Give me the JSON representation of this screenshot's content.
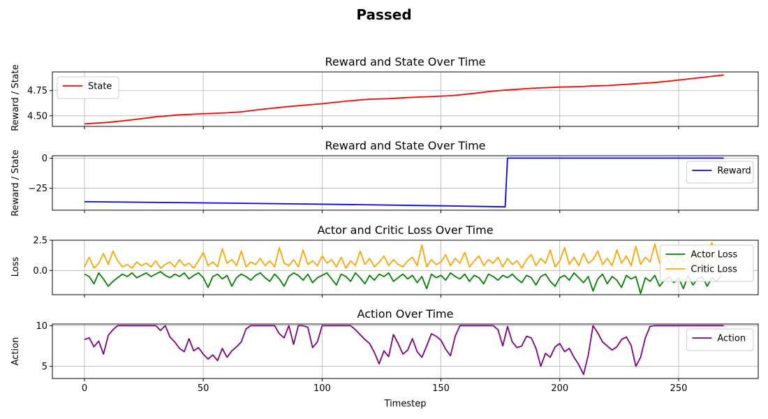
{
  "figure": {
    "suptitle": "Passed"
  },
  "chart_data": [
    {
      "type": "line",
      "title": "Reward and State Over Time",
      "xlabel": "",
      "ylabel": "Reward / State",
      "xlim": [
        -13.5,
        283.5
      ],
      "ylim": [
        4.395,
        4.935
      ],
      "yticks": [
        4.5,
        4.75
      ],
      "ytick_labels": [
        "4.50",
        "4.75"
      ],
      "xticks": [
        0,
        50,
        100,
        150,
        200,
        250
      ],
      "xtick_labels_visible": false,
      "grid": true,
      "legend": "top-left",
      "series": [
        {
          "name": "State",
          "color": "#ff0000",
          "x": [
            0,
            10,
            20,
            30,
            40,
            50,
            60,
            66,
            75,
            85,
            95,
            100,
            110,
            120,
            128,
            135,
            145,
            155,
            165,
            172,
            180,
            190,
            200,
            210,
            213,
            220,
            230,
            240,
            250,
            260,
            269
          ],
          "y": [
            4.42,
            4.435,
            4.46,
            4.49,
            4.51,
            4.52,
            4.53,
            4.54,
            4.565,
            4.59,
            4.61,
            4.62,
            4.645,
            4.665,
            4.67,
            4.68,
            4.69,
            4.7,
            4.725,
            4.745,
            4.76,
            4.775,
            4.785,
            4.79,
            4.795,
            4.8,
            4.815,
            4.83,
            4.855,
            4.88,
            4.905
          ]
        }
      ]
    },
    {
      "type": "line",
      "title": "Reward and State Over Time",
      "xlabel": "",
      "ylabel": "Reward / State",
      "xlim": [
        -13.5,
        283.5
      ],
      "ylim": [
        -43.4,
        2.1
      ],
      "yticks": [
        -25,
        0
      ],
      "ytick_labels": [
        "−25",
        "0"
      ],
      "xticks": [
        0,
        50,
        100,
        150,
        200,
        250
      ],
      "xtick_labels_visible": false,
      "grid": true,
      "legend": "right",
      "series": [
        {
          "name": "Reward",
          "color": "#0000ff",
          "x": [
            0,
            50,
            100,
            150,
            177,
            178,
            220,
            269
          ],
          "y": [
            -36.3,
            -37.3,
            -38.4,
            -39.7,
            -40.6,
            0.1,
            0.1,
            0.1
          ]
        }
      ]
    },
    {
      "type": "line",
      "title": "Actor and Critic Loss Over Time",
      "xlabel": "",
      "ylabel": "Loss",
      "xlim": [
        -13.5,
        283.5
      ],
      "ylim": [
        -2.0,
        2.5
      ],
      "yticks": [
        0.0,
        2.5
      ],
      "ytick_labels": [
        "0.0",
        "2.5"
      ],
      "xticks": [
        0,
        50,
        100,
        150,
        200,
        250
      ],
      "xtick_labels_visible": false,
      "grid": true,
      "legend": "top-right",
      "series": [
        {
          "name": "Actor Loss",
          "color": "#008000",
          "x": [
            0,
            2,
            4,
            6,
            8,
            10,
            12,
            14,
            16,
            18,
            20,
            22,
            24,
            26,
            28,
            30,
            32,
            34,
            36,
            38,
            40,
            42,
            44,
            46,
            48,
            50,
            52,
            54,
            56,
            58,
            60,
            62,
            64,
            66,
            68,
            70,
            72,
            74,
            76,
            78,
            80,
            82,
            84,
            86,
            88,
            90,
            92,
            94,
            96,
            98,
            100,
            102,
            104,
            106,
            108,
            110,
            112,
            114,
            116,
            118,
            120,
            122,
            124,
            126,
            128,
            130,
            132,
            134,
            136,
            138,
            140,
            142,
            144,
            146,
            148,
            150,
            152,
            154,
            156,
            158,
            160,
            162,
            164,
            166,
            168,
            170,
            172,
            174,
            176,
            178,
            180,
            182,
            184,
            186,
            188,
            190,
            192,
            194,
            196,
            198,
            200,
            202,
            204,
            206,
            208,
            210,
            212,
            214,
            216,
            218,
            220,
            222,
            224,
            226,
            228,
            230,
            232,
            234,
            236,
            238,
            240,
            242,
            244,
            246,
            248,
            250,
            252,
            254,
            256,
            258,
            260,
            262,
            264,
            266,
            268
          ],
          "y": [
            -0.3,
            -0.5,
            -1.1,
            -0.2,
            -0.7,
            -1.3,
            -0.9,
            -0.6,
            -0.3,
            -0.5,
            -0.2,
            -0.6,
            -0.4,
            -0.2,
            -0.5,
            -0.3,
            -0.1,
            -0.4,
            -0.6,
            -0.3,
            -0.5,
            -0.2,
            -0.7,
            -0.4,
            -0.2,
            -0.6,
            -1.4,
            -0.5,
            -0.3,
            -0.7,
            -0.4,
            -1.3,
            -0.6,
            -0.3,
            -0.5,
            -0.8,
            -0.4,
            -0.2,
            -0.6,
            -0.9,
            -0.3,
            -0.7,
            -1.3,
            -0.5,
            -0.2,
            -0.4,
            -0.8,
            -0.3,
            -1.0,
            -0.6,
            -0.4,
            -0.2,
            -0.7,
            -1.2,
            -0.3,
            -0.5,
            -0.9,
            -0.2,
            -0.6,
            -1.1,
            -0.4,
            -0.8,
            -0.3,
            -0.5,
            -0.2,
            -0.9,
            -0.6,
            -0.3,
            -0.7,
            -0.4,
            -1.0,
            -0.5,
            -1.5,
            -0.3,
            -0.6,
            -0.4,
            -0.8,
            -0.2,
            -0.5,
            -0.7,
            -0.3,
            -0.9,
            -0.4,
            -0.6,
            -1.1,
            -0.3,
            -0.5,
            -0.8,
            -0.4,
            -0.6,
            -0.3,
            -0.7,
            -1.0,
            -0.4,
            -0.6,
            -1.2,
            -0.5,
            -0.3,
            -0.9,
            -1.3,
            -0.6,
            -0.4,
            -0.8,
            -0.2,
            -0.6,
            -1.0,
            -0.5,
            -1.7,
            -0.7,
            -0.3,
            -1.1,
            -0.5,
            -0.8,
            -1.4,
            -0.4,
            -0.7,
            -0.5,
            -1.9,
            -0.6,
            -0.9,
            -0.4,
            -1.3,
            -0.8,
            -0.5,
            -1.0,
            -0.6,
            -1.5,
            -0.4,
            -1.2,
            -0.7,
            -0.5,
            -1.3,
            -0.6,
            -0.9,
            -0.4
          ]
        },
        {
          "name": "Critic Loss",
          "color": "#ffa500",
          "x": [
            0,
            2,
            4,
            6,
            8,
            10,
            12,
            14,
            16,
            18,
            20,
            22,
            24,
            26,
            28,
            30,
            32,
            34,
            36,
            38,
            40,
            42,
            44,
            46,
            48,
            50,
            52,
            54,
            56,
            58,
            60,
            62,
            64,
            66,
            68,
            70,
            72,
            74,
            76,
            78,
            80,
            82,
            84,
            86,
            88,
            90,
            92,
            94,
            96,
            98,
            100,
            102,
            104,
            106,
            108,
            110,
            112,
            114,
            116,
            118,
            120,
            122,
            124,
            126,
            128,
            130,
            132,
            134,
            136,
            138,
            140,
            142,
            144,
            146,
            148,
            150,
            152,
            154,
            156,
            158,
            160,
            162,
            164,
            166,
            168,
            170,
            172,
            174,
            176,
            178,
            180,
            182,
            184,
            186,
            188,
            190,
            192,
            194,
            196,
            198,
            200,
            202,
            204,
            206,
            208,
            210,
            212,
            214,
            216,
            218,
            220,
            222,
            224,
            226,
            228,
            230,
            232,
            234,
            236,
            238,
            240,
            242,
            244,
            246,
            248,
            250,
            252,
            254,
            256,
            258,
            260,
            262,
            264,
            266,
            268
          ],
          "y": [
            0.3,
            1.1,
            0.2,
            0.6,
            1.4,
            0.5,
            1.6,
            0.8,
            0.3,
            0.5,
            0.2,
            0.7,
            0.4,
            0.6,
            0.3,
            0.8,
            0.2,
            0.5,
            0.7,
            0.3,
            0.9,
            0.4,
            0.6,
            0.2,
            0.8,
            1.5,
            0.4,
            0.7,
            0.3,
            1.8,
            0.6,
            0.9,
            0.4,
            1.6,
            0.3,
            0.7,
            0.5,
            1.0,
            0.4,
            0.8,
            0.3,
            1.9,
            0.6,
            0.4,
            0.9,
            0.3,
            1.7,
            0.5,
            0.8,
            0.4,
            1.2,
            0.6,
            0.9,
            0.3,
            1.1,
            0.2,
            0.8,
            0.4,
            1.6,
            0.5,
            1.0,
            0.3,
            0.7,
            1.2,
            0.4,
            0.9,
            0.5,
            0.3,
            0.8,
            1.1,
            0.4,
            2.1,
            0.3,
            0.9,
            0.5,
            0.7,
            1.3,
            0.4,
            1.0,
            0.6,
            1.5,
            0.3,
            0.8,
            1.2,
            0.4,
            0.9,
            0.6,
            1.1,
            0.3,
            1.0,
            0.5,
            0.8,
            0.2,
            0.9,
            1.3,
            0.4,
            1.0,
            0.6,
            1.7,
            0.3,
            0.8,
            1.9,
            0.5,
            1.1,
            0.4,
            1.4,
            0.6,
            0.9,
            1.6,
            0.5,
            1.0,
            0.4,
            1.7,
            0.6,
            1.2,
            0.4,
            2.0,
            0.5,
            1.1,
            0.7,
            2.2,
            0.6,
            1.3,
            0.9,
            0.4,
            1.5,
            0.7,
            1.1,
            0.5,
            1.8,
            0.6,
            1.3,
            2.3,
            0.8,
            1.0
          ]
        }
      ]
    },
    {
      "type": "line",
      "title": "Action Over Time",
      "xlabel": "Timestep",
      "ylabel": "Action",
      "xlim": [
        -13.5,
        283.5
      ],
      "ylim": [
        3.5,
        10.2
      ],
      "yticks": [
        5,
        10
      ],
      "ytick_labels": [
        "5",
        "10"
      ],
      "xticks": [
        0,
        50,
        100,
        150,
        200,
        250
      ],
      "xtick_labels": [
        "0",
        "50",
        "100",
        "150",
        "200",
        "250"
      ],
      "grid": true,
      "legend": "top-right",
      "series": [
        {
          "name": "Action",
          "color": "#800080",
          "x": [
            0,
            2,
            4,
            6,
            8,
            10,
            12,
            14,
            16,
            18,
            20,
            24,
            28,
            30,
            32,
            34,
            36,
            38,
            40,
            42,
            44,
            46,
            48,
            50,
            52,
            54,
            56,
            58,
            60,
            62,
            64,
            66,
            68,
            70,
            72,
            76,
            80,
            82,
            84,
            86,
            88,
            90,
            92,
            94,
            96,
            98,
            100,
            104,
            108,
            112,
            114,
            116,
            118,
            120,
            122,
            124,
            126,
            128,
            130,
            132,
            134,
            136,
            138,
            140,
            142,
            144,
            146,
            148,
            150,
            152,
            154,
            156,
            158,
            160,
            164,
            168,
            172,
            174,
            176,
            178,
            180,
            182,
            184,
            186,
            188,
            190,
            192,
            194,
            196,
            198,
            200,
            202,
            204,
            206,
            208,
            210,
            212,
            214,
            216,
            218,
            220,
            222,
            224,
            226,
            228,
            230,
            232,
            234,
            236,
            238,
            240,
            244,
            248,
            252,
            256,
            260,
            264,
            269
          ],
          "y": [
            8.3,
            8.5,
            7.4,
            8.1,
            6.5,
            8.8,
            9.5,
            10.0,
            10.0,
            10.0,
            10.0,
            10.0,
            10.0,
            10.0,
            9.4,
            10.0,
            8.6,
            8.0,
            7.2,
            6.8,
            8.4,
            6.9,
            7.3,
            6.5,
            5.9,
            6.4,
            5.7,
            7.2,
            6.1,
            6.9,
            7.4,
            8.0,
            9.6,
            10.0,
            10.0,
            10.0,
            10.0,
            9.0,
            8.5,
            10.0,
            7.7,
            10.0,
            10.0,
            9.8,
            7.3,
            8.0,
            10.0,
            10.0,
            10.0,
            10.0,
            9.5,
            8.9,
            8.3,
            7.8,
            6.7,
            5.3,
            6.9,
            6.2,
            8.9,
            7.8,
            6.5,
            7.0,
            8.4,
            6.8,
            6.1,
            7.5,
            9.0,
            8.7,
            8.2,
            7.1,
            6.3,
            8.7,
            10.0,
            10.0,
            10.0,
            10.0,
            10.0,
            9.5,
            7.5,
            9.9,
            8.0,
            7.3,
            7.5,
            8.7,
            8.5,
            7.2,
            5.0,
            6.6,
            6.1,
            7.4,
            7.8,
            6.8,
            7.2,
            6.1,
            5.2,
            4.0,
            6.4,
            10.0,
            9.1,
            8.0,
            7.5,
            7.0,
            7.4,
            8.3,
            8.6,
            7.6,
            5.0,
            6.1,
            8.5,
            9.9,
            10.0,
            10.0,
            10.0,
            10.0,
            10.0,
            10.0,
            10.0,
            10.0
          ]
        }
      ]
    }
  ]
}
